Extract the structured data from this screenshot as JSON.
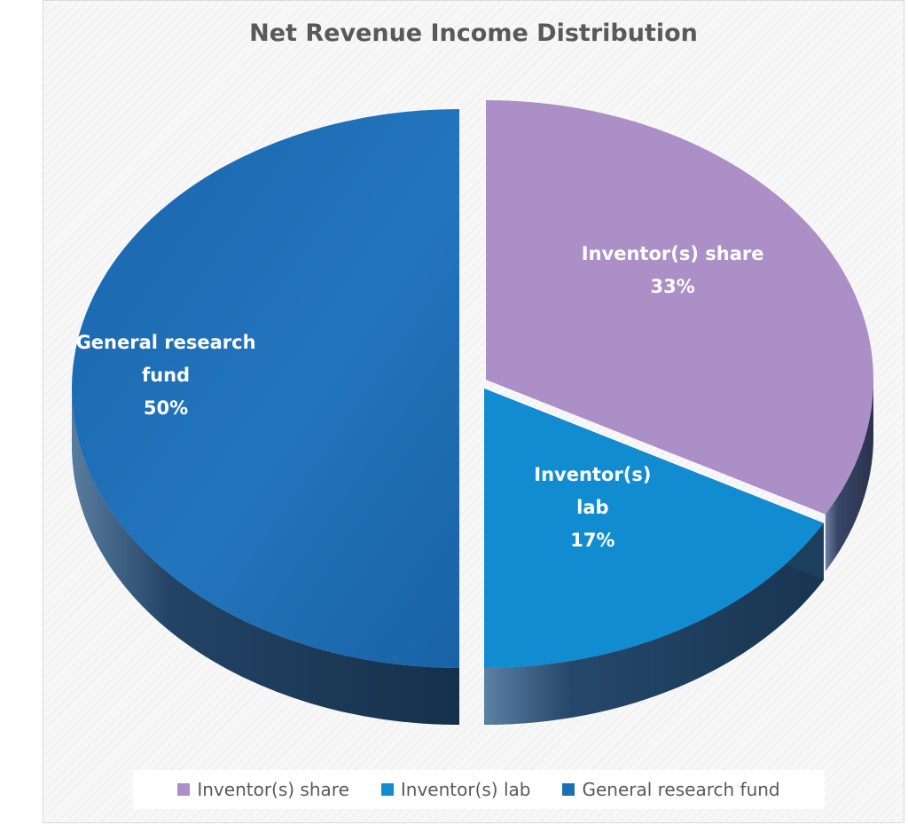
{
  "chart_data": {
    "type": "pie",
    "title": "Net Revenue Income Distribution",
    "categories": [
      "Inventor(s) share",
      "Inventor(s) lab",
      "General research fund"
    ],
    "values": [
      33,
      17,
      50
    ],
    "slices": [
      {
        "name": "Inventor(s) share",
        "label_lines": [
          "Inventor(s) share"
        ],
        "value": 33,
        "percent_label": "33%",
        "color": "#ab8fc6",
        "side_color": "#453a55"
      },
      {
        "name": "Inventor(s) lab",
        "label_lines": [
          "Inventor(s)",
          "lab"
        ],
        "value": 17,
        "percent_label": "17%",
        "color": "#118cd0",
        "side_color": "#1c3f5e"
      },
      {
        "name": "General research fund",
        "label_lines": [
          "General research",
          "fund"
        ],
        "value": 50,
        "percent_label": "50%",
        "color": "#1b6fb5",
        "side_color": "#173654"
      }
    ],
    "legend_position": "bottom",
    "style": "3d-exploded"
  }
}
